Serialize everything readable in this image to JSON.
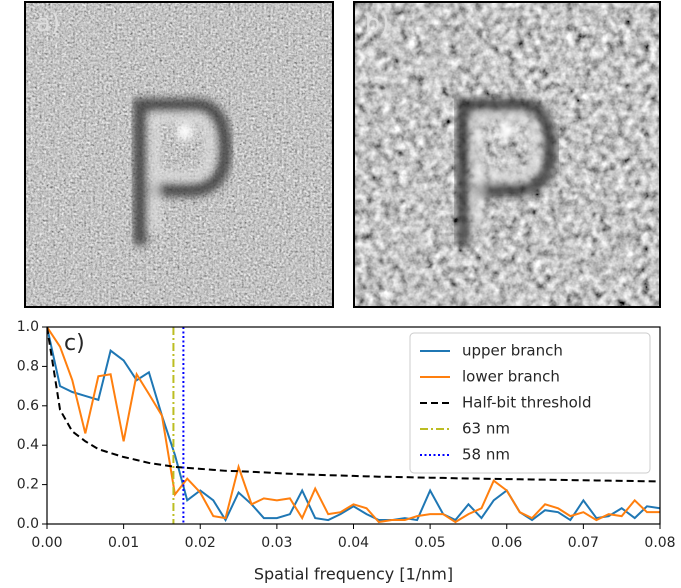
{
  "panels": [
    {
      "label": "a)"
    },
    {
      "label": "b)"
    }
  ],
  "chart_data": {
    "type": "line",
    "annotation": "c)",
    "xlabel": "Spatial frequency [1/nm]",
    "x": [
      0,
      0.0017,
      0.0033,
      0.005,
      0.0067,
      0.0083,
      0.01,
      0.0117,
      0.0133,
      0.015,
      0.0167,
      0.0183,
      0.02,
      0.0217,
      0.0233,
      0.025,
      0.0267,
      0.0283,
      0.03,
      0.0317,
      0.0333,
      0.035,
      0.0367,
      0.0383,
      0.04,
      0.0417,
      0.0433,
      0.045,
      0.0467,
      0.0483,
      0.05,
      0.0517,
      0.0533,
      0.055,
      0.0567,
      0.0583,
      0.06,
      0.0617,
      0.0633,
      0.065,
      0.0667,
      0.0683,
      0.07,
      0.0717,
      0.0733,
      0.075,
      0.0767,
      0.0783,
      0.08
    ],
    "series": [
      {
        "name": "upper branch",
        "color": "#1f77b4",
        "linestyle": "solid",
        "values": [
          1.0,
          0.7,
          0.67,
          0.65,
          0.63,
          0.88,
          0.83,
          0.73,
          0.77,
          0.55,
          0.35,
          0.12,
          0.17,
          0.12,
          0.02,
          0.16,
          0.1,
          0.03,
          0.03,
          0.05,
          0.17,
          0.03,
          0.02,
          0.05,
          0.09,
          0.05,
          0.02,
          0.02,
          0.03,
          0.02,
          0.17,
          0.05,
          0.02,
          0.1,
          0.03,
          0.12,
          0.17,
          0.06,
          0.02,
          0.07,
          0.06,
          0.02,
          0.12,
          0.03,
          0.04,
          0.08,
          0.03,
          0.09,
          0.08
        ]
      },
      {
        "name": "lower branch",
        "color": "#ff7f0e",
        "linestyle": "solid",
        "values": [
          1.0,
          0.9,
          0.73,
          0.46,
          0.75,
          0.76,
          0.42,
          0.76,
          0.66,
          0.55,
          0.15,
          0.23,
          0.16,
          0.04,
          0.03,
          0.29,
          0.1,
          0.13,
          0.12,
          0.13,
          0.03,
          0.18,
          0.05,
          0.06,
          0.1,
          0.08,
          0.01,
          0.02,
          0.02,
          0.04,
          0.05,
          0.05,
          0.01,
          0.05,
          0.08,
          0.22,
          0.17,
          0.06,
          0.03,
          0.1,
          0.08,
          0.04,
          0.06,
          0.02,
          0.05,
          0.04,
          0.12,
          0.06,
          0.06
        ]
      },
      {
        "name": "Half-bit threshold",
        "color": "#000000",
        "linestyle": "dashed",
        "values": [
          1.0,
          0.58,
          0.47,
          0.42,
          0.38,
          0.36,
          0.34,
          0.325,
          0.31,
          0.3,
          0.29,
          0.285,
          0.28,
          0.275,
          0.27,
          0.268,
          0.265,
          0.262,
          0.258,
          0.255,
          0.252,
          0.25,
          0.248,
          0.246,
          0.244,
          0.242,
          0.24,
          0.239,
          0.238,
          0.236,
          0.235,
          0.234,
          0.232,
          0.231,
          0.23,
          0.229,
          0.228,
          0.227,
          0.226,
          0.225,
          0.224,
          0.223,
          0.222,
          0.221,
          0.22,
          0.219,
          0.218,
          0.217,
          0.216
        ]
      },
      {
        "name": "63 nm",
        "color": "#bcbd22",
        "linestyle": "dashdot",
        "x_value": 0.0165
      },
      {
        "name": "58 nm",
        "color": "#0000ff",
        "linestyle": "dotted",
        "x_value": 0.0178
      }
    ],
    "xlim": [
      0,
      0.08
    ],
    "ylim": [
      0,
      1.0
    ],
    "xticks": [
      {
        "value": 0,
        "label": "0.00"
      },
      0.01,
      0.02,
      0.03,
      0.04,
      0.05,
      0.06,
      0.07,
      0.08
    ],
    "yticks": [
      {
        "value": 0,
        "label": "0.0"
      },
      0.2,
      0.4,
      0.6,
      0.8,
      {
        "value": 1,
        "label": "1.0"
      }
    ],
    "legend": "upper right"
  }
}
